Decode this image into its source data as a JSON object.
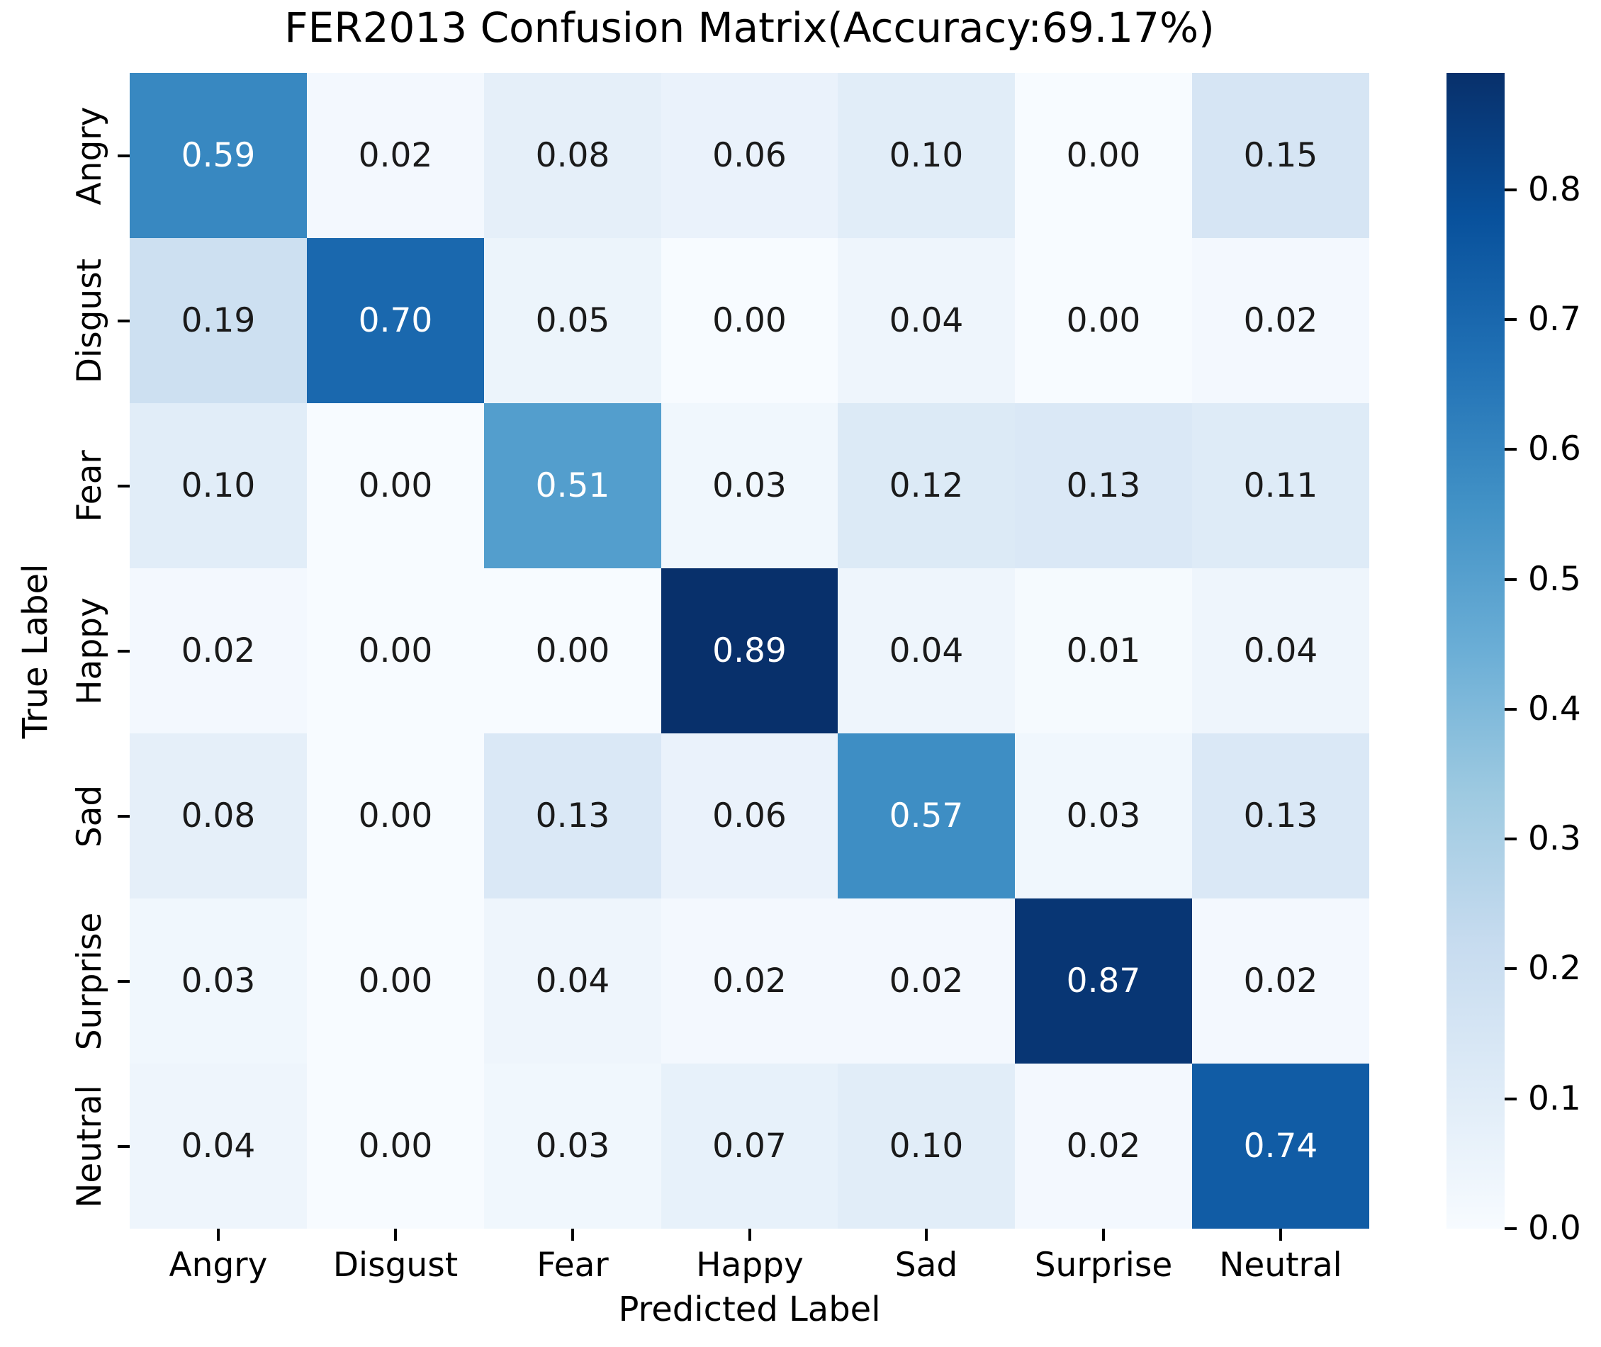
{
  "title": "FER2013 Confusion Matrix(Accuracy:69.17%)",
  "chart_data": {
    "type": "heatmap",
    "title": "FER2013 Confusion Matrix(Accuracy:69.17%)",
    "accuracy_label": "69.17%",
    "xlabel": "Predicted Label",
    "ylabel": "True Label",
    "x_categories": [
      "Angry",
      "Disgust",
      "Fear",
      "Happy",
      "Sad",
      "Surprise",
      "Neutral"
    ],
    "y_categories": [
      "Angry",
      "Disgust",
      "Fear",
      "Happy",
      "Sad",
      "Surprise",
      "Neutral"
    ],
    "values": [
      [
        0.59,
        0.02,
        0.08,
        0.06,
        0.1,
        0.0,
        0.15
      ],
      [
        0.19,
        0.7,
        0.05,
        0.0,
        0.04,
        0.0,
        0.02
      ],
      [
        0.1,
        0.0,
        0.51,
        0.03,
        0.12,
        0.13,
        0.11
      ],
      [
        0.02,
        0.0,
        0.0,
        0.89,
        0.04,
        0.01,
        0.04
      ],
      [
        0.08,
        0.0,
        0.13,
        0.06,
        0.57,
        0.03,
        0.13
      ],
      [
        0.03,
        0.0,
        0.04,
        0.02,
        0.02,
        0.87,
        0.02
      ],
      [
        0.04,
        0.0,
        0.03,
        0.07,
        0.1,
        0.02,
        0.74
      ]
    ],
    "value_decimals": 2,
    "colormap": "Blues",
    "colormap_stops": [
      "#f7fbff",
      "#deebf7",
      "#c6dbef",
      "#9ecae1",
      "#6baed6",
      "#4292c6",
      "#2171b5",
      "#08519c",
      "#08306b"
    ],
    "vmin": 0.0,
    "vmax": 0.89,
    "colorbar_ticks": [
      0.0,
      0.1,
      0.2,
      0.3,
      0.4,
      0.5,
      0.6,
      0.7,
      0.8
    ],
    "colorbar_position": "right",
    "grid": false,
    "annotation_color_dark": "#1a1a1a",
    "annotation_color_light": "#ffffff",
    "tick_color": "#000000"
  }
}
